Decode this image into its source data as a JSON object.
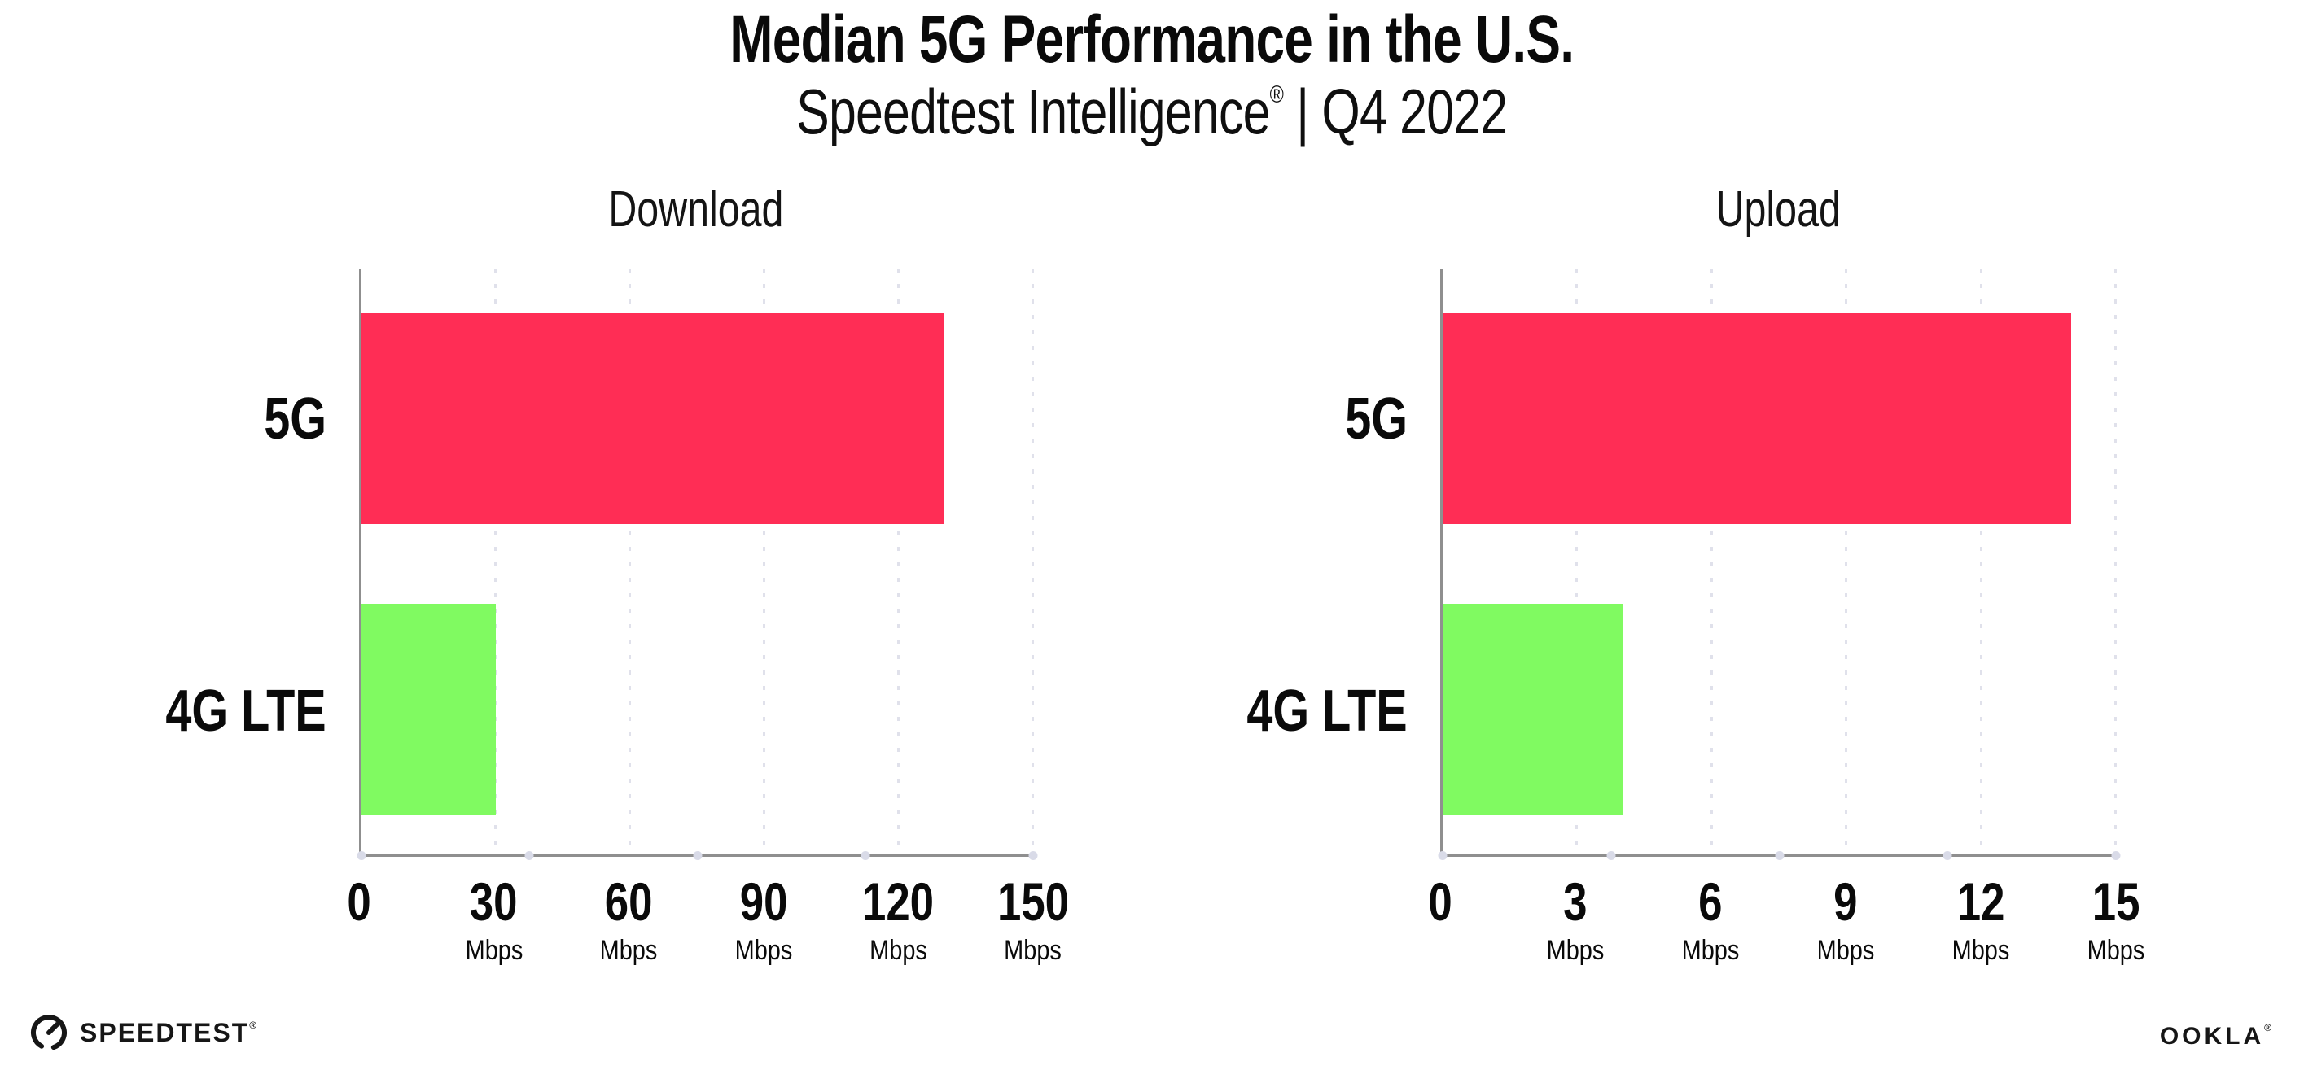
{
  "page": {
    "title": "Median 5G Performance in the U.S.",
    "subtitle_brand": "Speedtest Intelligence",
    "subtitle_reg": "®",
    "subtitle_rest": " | Q4 2022"
  },
  "colors": {
    "bar_5g": "#FF2D55",
    "bar_4g": "#80FA61",
    "axis": "#8F8F8F",
    "grid_dot": "#E0E1EB",
    "baseline_dot": "#D9DBE8"
  },
  "chart_data": [
    {
      "type": "bar",
      "orientation": "horizontal",
      "title": "Download",
      "categories": [
        "5G",
        "4G LTE"
      ],
      "values": [
        130,
        30
      ],
      "unit": "Mbps",
      "xlim": [
        0,
        150
      ],
      "ticks": [
        0,
        30,
        60,
        90,
        120,
        150
      ],
      "grid": "dotted-vertical",
      "legend": "none"
    },
    {
      "type": "bar",
      "orientation": "horizontal",
      "title": "Upload",
      "categories": [
        "5G",
        "4G LTE"
      ],
      "values": [
        14,
        4
      ],
      "unit": "Mbps",
      "xlim": [
        0,
        15
      ],
      "ticks": [
        0,
        3,
        6,
        9,
        12,
        15
      ],
      "grid": "dotted-vertical",
      "legend": "none"
    }
  ],
  "footer": {
    "speedtest_label": "SPEEDTEST",
    "speedtest_reg": "®",
    "ookla_label": "OOKLA",
    "ookla_reg": "®"
  }
}
